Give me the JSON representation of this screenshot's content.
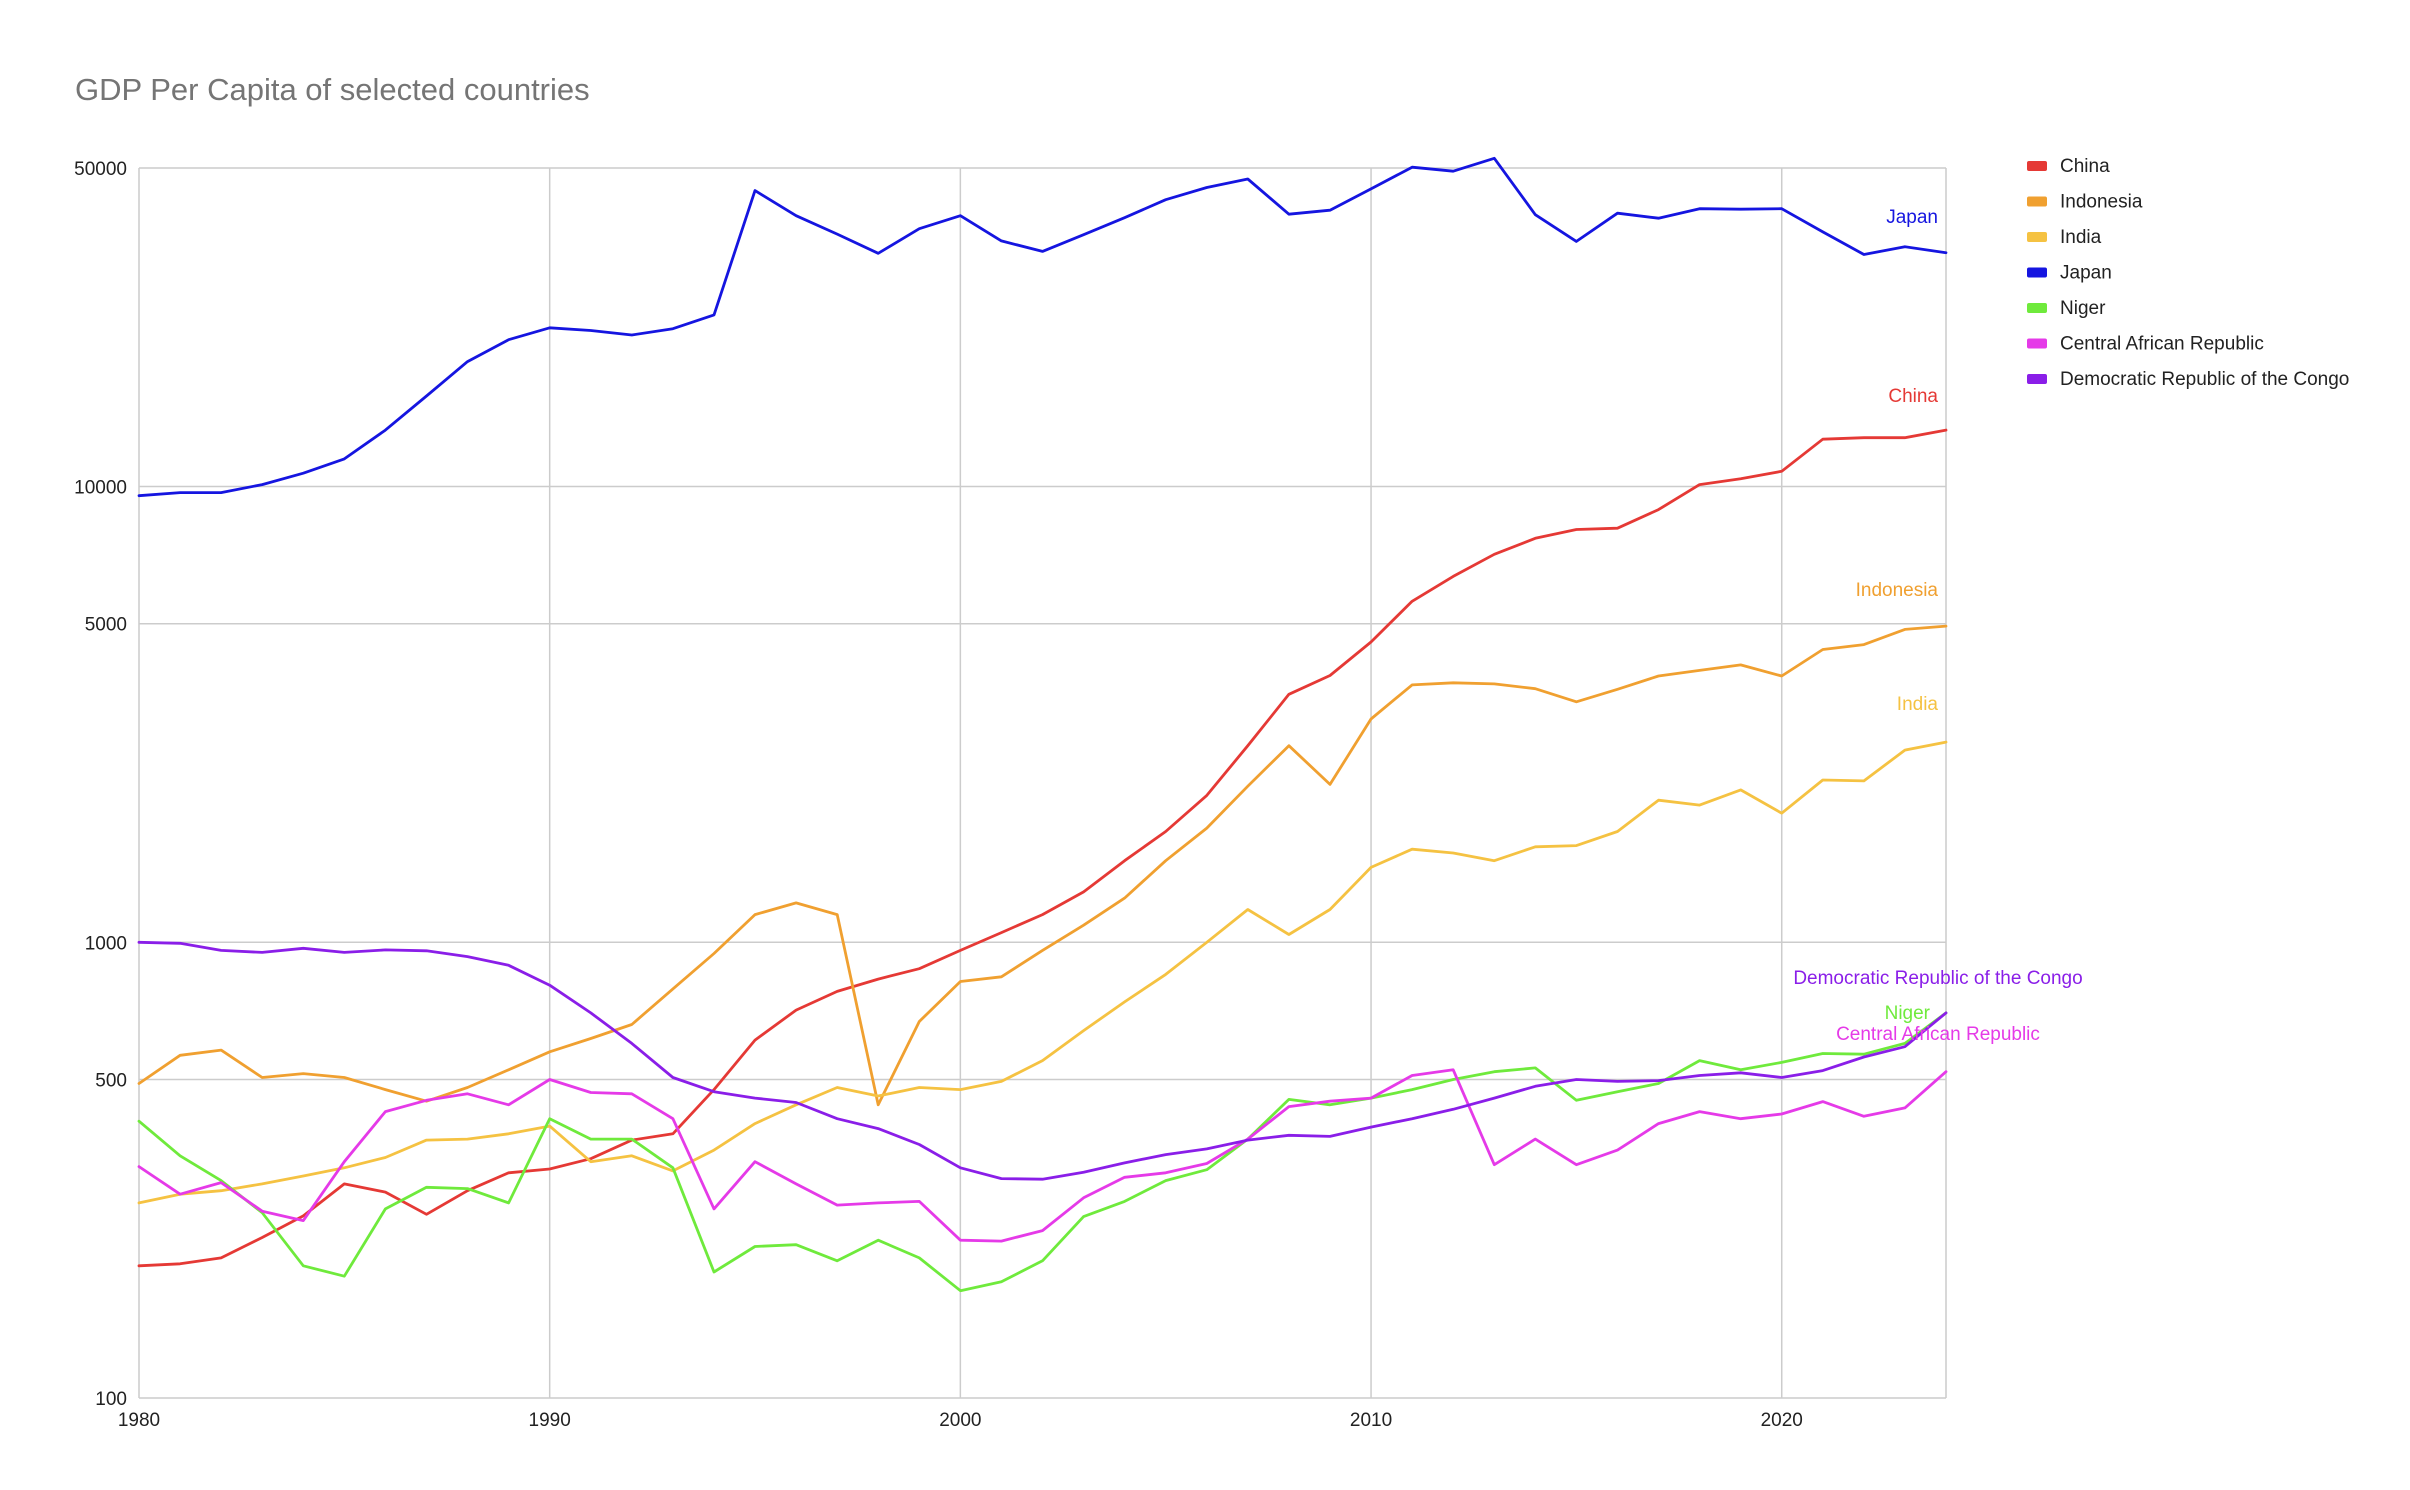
{
  "chart_data": {
    "type": "line",
    "title": "GDP Per Capita of selected countries",
    "xlabel": "",
    "ylabel": "",
    "y_scale": "log",
    "xlim": [
      1980,
      2024
    ],
    "ylim": [
      100,
      50000
    ],
    "x_ticks": [
      1980,
      1990,
      2000,
      2010,
      2020
    ],
    "y_ticks": [
      100,
      500,
      1000,
      5000,
      10000,
      50000
    ],
    "grid": true,
    "legend_position": "right",
    "x": [
      1980,
      1981,
      1982,
      1983,
      1984,
      1985,
      1986,
      1987,
      1988,
      1989,
      1990,
      1991,
      1992,
      1993,
      1994,
      1995,
      1996,
      1997,
      1998,
      1999,
      2000,
      2001,
      2002,
      2003,
      2004,
      2005,
      2006,
      2007,
      2008,
      2009,
      2010,
      2011,
      2012,
      2013,
      2014,
      2015,
      2016,
      2017,
      2018,
      2019,
      2020,
      2021,
      2022,
      2023,
      2024
    ],
    "series": [
      {
        "name": "China",
        "color": "#e53935",
        "end_label": "China",
        "values": [
          195,
          197,
          203,
          225,
          251,
          295,
          283,
          253,
          285,
          312,
          318,
          335,
          368,
          380,
          475,
          610,
          710,
          780,
          830,
          875,
          960,
          1050,
          1150,
          1290,
          1510,
          1750,
          2100,
          2700,
          3500,
          3850,
          4560,
          5600,
          6350,
          7100,
          7700,
          8050,
          8100,
          8900,
          10100,
          10400,
          10800,
          12700,
          12800,
          12800,
          13300
        ]
      },
      {
        "name": "Indonesia",
        "color": "#f0a030",
        "end_label": "Indonesia",
        "values": [
          490,
          565,
          580,
          505,
          515,
          505,
          475,
          448,
          480,
          525,
          575,
          615,
          660,
          790,
          945,
          1150,
          1220,
          1150,
          440,
          670,
          820,
          840,
          960,
          1090,
          1250,
          1510,
          1780,
          2200,
          2700,
          2220,
          3090,
          3670,
          3710,
          3690,
          3600,
          3370,
          3590,
          3840,
          3950,
          4060,
          3840,
          4390,
          4500,
          4860,
          4940
        ]
      },
      {
        "name": "India",
        "color": "#f5c242",
        "end_label": "India",
        "values": [
          268,
          280,
          285,
          295,
          307,
          320,
          337,
          368,
          370,
          380,
          395,
          330,
          340,
          315,
          350,
          400,
          440,
          480,
          460,
          480,
          475,
          495,
          550,
          640,
          740,
          850,
          1000,
          1180,
          1040,
          1180,
          1460,
          1600,
          1570,
          1510,
          1620,
          1630,
          1750,
          2050,
          2000,
          2160,
          1920,
          2270,
          2260,
          2640,
          2750
        ]
      },
      {
        "name": "Japan",
        "color": "#1515e0",
        "end_label": "Japan",
        "values": [
          9550,
          9700,
          9700,
          10100,
          10700,
          11500,
          13300,
          15800,
          18800,
          21000,
          22300,
          22000,
          21500,
          22200,
          23800,
          44600,
          39300,
          35800,
          32500,
          36800,
          39300,
          34600,
          32800,
          35700,
          38900,
          42600,
          45300,
          47300,
          39600,
          40400,
          45000,
          50200,
          49200,
          52500,
          39500,
          34500,
          39800,
          38800,
          40700,
          40600,
          40700,
          36200,
          32300,
          33600,
          32600
        ]
      },
      {
        "name": "Niger",
        "color": "#6fea3c",
        "end_label": "Niger",
        "values": [
          405,
          340,
          300,
          255,
          195,
          185,
          260,
          290,
          288,
          268,
          410,
          370,
          370,
          320,
          189,
          215,
          217,
          200,
          222,
          203,
          172,
          180,
          200,
          250,
          270,
          300,
          317,
          370,
          452,
          440,
          455,
          475,
          500,
          520,
          530,
          450,
          470,
          490,
          550,
          525,
          545,
          570,
          568,
          600,
          700
        ]
      },
      {
        "name": "Central African Republic",
        "color": "#e53ae8",
        "end_label": "Central African Republic",
        "values": [
          322,
          280,
          297,
          257,
          245,
          330,
          425,
          450,
          465,
          440,
          500,
          468,
          465,
          410,
          260,
          330,
          295,
          265,
          268,
          270,
          222,
          221,
          233,
          275,
          305,
          312,
          327,
          370,
          436,
          448,
          455,
          510,
          525,
          325,
          370,
          325,
          350,
          400,
          425,
          410,
          420,
          447,
          415,
          433,
          520
        ]
      },
      {
        "name": "Democratic Republic of the Congo",
        "color": "#8a1ee8",
        "end_label": "Democratic Republic of the Congo",
        "values": [
          1000,
          995,
          960,
          950,
          970,
          950,
          962,
          958,
          930,
          890,
          805,
          700,
          600,
          505,
          470,
          455,
          445,
          410,
          390,
          360,
          320,
          303,
          302,
          313,
          328,
          342,
          352,
          368,
          377,
          375,
          393,
          410,
          430,
          455,
          483,
          500,
          495,
          497,
          510,
          517,
          505,
          523,
          560,
          590,
          700
        ]
      }
    ]
  }
}
